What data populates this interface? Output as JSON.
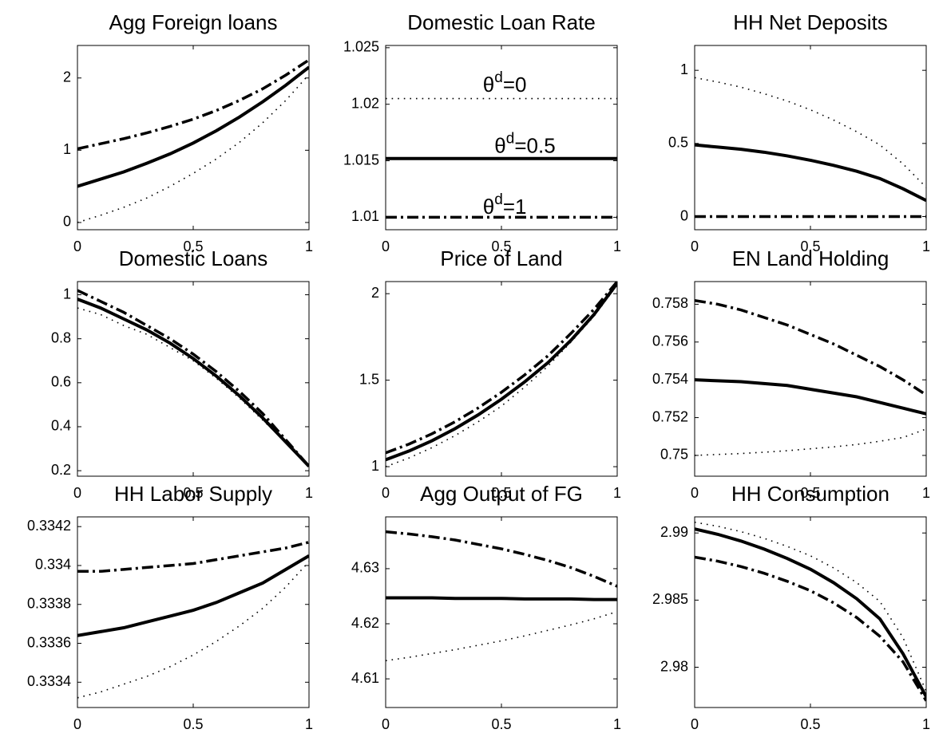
{
  "chart_data": [
    {
      "type": "line",
      "title": "Agg Foreign loans",
      "x": [
        0,
        0.1,
        0.2,
        0.3,
        0.4,
        0.5,
        0.6,
        0.7,
        0.8,
        0.9,
        1
      ],
      "xlim": [
        0,
        1
      ],
      "xticks": [
        0,
        0.5,
        1
      ],
      "ylim": [
        -0.1,
        2.45
      ],
      "yticks": [
        0,
        1,
        2
      ],
      "series": [
        {
          "color": "#000000",
          "style": "solid",
          "values": [
            0.5,
            0.6,
            0.7,
            0.82,
            0.95,
            1.1,
            1.27,
            1.46,
            1.67,
            1.9,
            2.15
          ]
        },
        {
          "color": "#000000",
          "style": "dashdot",
          "values": [
            1.02,
            1.09,
            1.16,
            1.24,
            1.33,
            1.43,
            1.55,
            1.69,
            1.85,
            2.04,
            2.25
          ]
        },
        {
          "color": "#000000",
          "style": "dotted",
          "values": [
            0,
            0.1,
            0.21,
            0.34,
            0.5,
            0.68,
            0.88,
            1.11,
            1.38,
            1.69,
            2.05
          ]
        }
      ]
    },
    {
      "type": "line",
      "title": "Domestic Loan Rate",
      "x": [
        0,
        0.1,
        0.2,
        0.3,
        0.4,
        0.5,
        0.6,
        0.7,
        0.8,
        0.9,
        1
      ],
      "xlim": [
        0,
        1
      ],
      "xticks": [
        0,
        0.5,
        1
      ],
      "ylim": [
        1.0089,
        1.0252
      ],
      "yticks": [
        1.01,
        1.015,
        1.02,
        1.025
      ],
      "series": [
        {
          "color": "#000000",
          "style": "solid",
          "values": [
            1.0152,
            1.0152,
            1.0152,
            1.0152,
            1.0152,
            1.0152,
            1.0152,
            1.0152,
            1.0152,
            1.0152,
            1.0152
          ]
        },
        {
          "color": "#000000",
          "style": "dashdot",
          "values": [
            1.01,
            1.01,
            1.01,
            1.01,
            1.01,
            1.01,
            1.01,
            1.01,
            1.01,
            1.01,
            1.01
          ]
        },
        {
          "color": "#000000",
          "style": "dotted",
          "values": [
            1.0205,
            1.0205,
            1.0205,
            1.0205,
            1.0205,
            1.0205,
            1.0205,
            1.0205,
            1.0205,
            1.0205,
            1.0205
          ]
        }
      ],
      "annotations": [
        {
          "text": "θ",
          "sup": "d",
          "rest": "=0",
          "x": 0.42,
          "y": 1.0216
        },
        {
          "text": "θ",
          "sup": "d",
          "rest": "=0.5",
          "x": 0.47,
          "y": 1.0162
        },
        {
          "text": "θ",
          "sup": "d",
          "rest": "=1",
          "x": 0.42,
          "y": 1.0108
        }
      ]
    },
    {
      "type": "line",
      "title": "HH Net Deposits",
      "x": [
        0,
        0.1,
        0.2,
        0.3,
        0.4,
        0.5,
        0.6,
        0.7,
        0.8,
        0.9,
        1
      ],
      "xlim": [
        0,
        1
      ],
      "xticks": [
        0,
        0.5,
        1
      ],
      "ylim": [
        -0.09,
        1.17
      ],
      "yticks": [
        0,
        0.5,
        1
      ],
      "series": [
        {
          "color": "#000000",
          "style": "solid",
          "values": [
            0.49,
            0.475,
            0.46,
            0.44,
            0.415,
            0.385,
            0.35,
            0.31,
            0.26,
            0.19,
            0.11
          ]
        },
        {
          "color": "#000000",
          "style": "dashdot",
          "values": [
            0,
            0,
            0,
            0,
            0,
            0,
            0,
            0,
            0,
            0,
            0
          ]
        },
        {
          "color": "#000000",
          "style": "dotted",
          "values": [
            0.95,
            0.92,
            0.885,
            0.84,
            0.79,
            0.73,
            0.66,
            0.58,
            0.49,
            0.36,
            0.2
          ]
        }
      ]
    },
    {
      "type": "line",
      "title": "Domestic Loans",
      "x": [
        0,
        0.1,
        0.2,
        0.3,
        0.4,
        0.5,
        0.6,
        0.7,
        0.8,
        0.9,
        1
      ],
      "xlim": [
        0,
        1
      ],
      "xticks": [
        0,
        0.5,
        1
      ],
      "ylim": [
        0.175,
        1.06
      ],
      "yticks": [
        0.2,
        0.4,
        0.6,
        0.8,
        1
      ],
      "series": [
        {
          "color": "#000000",
          "style": "solid",
          "values": [
            0.98,
            0.94,
            0.89,
            0.84,
            0.78,
            0.71,
            0.63,
            0.54,
            0.44,
            0.33,
            0.22
          ]
        },
        {
          "color": "#000000",
          "style": "dashdot",
          "values": [
            1.02,
            0.97,
            0.92,
            0.86,
            0.8,
            0.73,
            0.65,
            0.56,
            0.46,
            0.34,
            0.22
          ]
        },
        {
          "color": "#000000",
          "style": "dotted",
          "values": [
            0.94,
            0.91,
            0.86,
            0.82,
            0.76,
            0.7,
            0.62,
            0.53,
            0.43,
            0.33,
            0.22
          ]
        }
      ]
    },
    {
      "type": "line",
      "title": "Price of Land",
      "x": [
        0,
        0.1,
        0.2,
        0.3,
        0.4,
        0.5,
        0.6,
        0.7,
        0.8,
        0.9,
        1
      ],
      "xlim": [
        0,
        1
      ],
      "xticks": [
        0,
        0.5,
        1
      ],
      "ylim": [
        0.945,
        2.07
      ],
      "yticks": [
        1,
        1.5,
        2
      ],
      "series": [
        {
          "color": "#000000",
          "style": "solid",
          "values": [
            1.04,
            1.09,
            1.15,
            1.22,
            1.3,
            1.39,
            1.49,
            1.6,
            1.73,
            1.88,
            2.06
          ]
        },
        {
          "color": "#000000",
          "style": "dashdot",
          "values": [
            1.08,
            1.13,
            1.19,
            1.26,
            1.34,
            1.43,
            1.53,
            1.64,
            1.77,
            1.91,
            2.07
          ]
        },
        {
          "color": "#000000",
          "style": "dotted",
          "values": [
            1.0,
            1.05,
            1.11,
            1.18,
            1.26,
            1.35,
            1.46,
            1.58,
            1.72,
            1.87,
            2.05
          ]
        }
      ]
    },
    {
      "type": "line",
      "title": "EN Land Holding",
      "x": [
        0,
        0.1,
        0.2,
        0.3,
        0.4,
        0.5,
        0.6,
        0.7,
        0.8,
        0.9,
        1
      ],
      "xlim": [
        0,
        1
      ],
      "xticks": [
        0,
        0.5,
        1
      ],
      "ylim": [
        0.7489,
        0.7592
      ],
      "yticks": [
        0.75,
        0.752,
        0.754,
        0.756,
        0.758
      ],
      "series": [
        {
          "color": "#000000",
          "style": "solid",
          "values": [
            0.754,
            0.75395,
            0.7539,
            0.7538,
            0.7537,
            0.7535,
            0.7533,
            0.7531,
            0.7528,
            0.7525,
            0.7522
          ]
        },
        {
          "color": "#000000",
          "style": "dashdot",
          "values": [
            0.7582,
            0.758,
            0.7577,
            0.7573,
            0.7569,
            0.7564,
            0.7559,
            0.7553,
            0.7547,
            0.754,
            0.7532
          ]
        },
        {
          "color": "#000000",
          "style": "dotted",
          "values": [
            0.75,
            0.75005,
            0.7501,
            0.75017,
            0.75025,
            0.75035,
            0.75045,
            0.75058,
            0.75075,
            0.75095,
            0.7514
          ]
        }
      ]
    },
    {
      "type": "line",
      "title": "HH Labor Supply",
      "x": [
        0,
        0.1,
        0.2,
        0.3,
        0.4,
        0.5,
        0.6,
        0.7,
        0.8,
        0.9,
        1
      ],
      "xlim": [
        0,
        1
      ],
      "xticks": [
        0,
        0.5,
        1
      ],
      "ylim": [
        0.33327,
        0.33425
      ],
      "yticks": [
        0.3334,
        0.3336,
        0.3338,
        0.334,
        0.3342
      ],
      "series": [
        {
          "color": "#000000",
          "style": "solid",
          "values": [
            0.33364,
            0.33366,
            0.33368,
            0.33371,
            0.33374,
            0.33377,
            0.33381,
            0.33386,
            0.33391,
            0.33398,
            0.33405
          ]
        },
        {
          "color": "#000000",
          "style": "dashdot",
          "values": [
            0.33397,
            0.33397,
            0.33398,
            0.33399,
            0.334,
            0.33401,
            0.33403,
            0.33405,
            0.33407,
            0.33409,
            0.33412
          ]
        },
        {
          "color": "#000000",
          "style": "dotted",
          "values": [
            0.33332,
            0.33335,
            0.33339,
            0.33343,
            0.33348,
            0.33354,
            0.33361,
            0.33369,
            0.33378,
            0.33389,
            0.33402
          ]
        }
      ]
    },
    {
      "type": "line",
      "title": "Agg Output of FG",
      "x": [
        0,
        0.1,
        0.2,
        0.3,
        0.4,
        0.5,
        0.6,
        0.7,
        0.8,
        0.9,
        1
      ],
      "xlim": [
        0,
        1
      ],
      "xticks": [
        0,
        0.5,
        1
      ],
      "ylim": [
        4.6048,
        4.6394
      ],
      "yticks": [
        4.61,
        4.62,
        4.63
      ],
      "series": [
        {
          "color": "#000000",
          "style": "solid",
          "values": [
            4.6247,
            4.6247,
            4.6247,
            4.6246,
            4.6246,
            4.6246,
            4.6245,
            4.6245,
            4.6245,
            4.6244,
            4.6244
          ]
        },
        {
          "color": "#000000",
          "style": "dashdot",
          "values": [
            4.6367,
            4.6363,
            4.6358,
            4.6352,
            4.6344,
            4.6336,
            4.6326,
            4.6315,
            4.6302,
            4.6286,
            4.6268
          ]
        },
        {
          "color": "#000000",
          "style": "dotted",
          "values": [
            4.6133,
            4.6139,
            4.6146,
            4.6153,
            4.6161,
            4.6169,
            4.6178,
            4.6188,
            4.6198,
            4.6209,
            4.6222
          ]
        }
      ]
    },
    {
      "type": "line",
      "title": "HH Consumption",
      "x": [
        0,
        0.1,
        0.2,
        0.3,
        0.4,
        0.5,
        0.6,
        0.7,
        0.8,
        0.9,
        1
      ],
      "xlim": [
        0,
        1
      ],
      "xticks": [
        0,
        0.5,
        1
      ],
      "ylim": [
        2.977,
        2.9912
      ],
      "yticks": [
        2.98,
        2.985,
        2.99
      ],
      "series": [
        {
          "color": "#000000",
          "style": "solid",
          "values": [
            2.9903,
            2.9899,
            2.9894,
            2.9888,
            2.9881,
            2.9873,
            2.9863,
            2.9851,
            2.9836,
            2.981,
            2.9778
          ]
        },
        {
          "color": "#000000",
          "style": "dashdot",
          "values": [
            2.9882,
            2.9879,
            2.9875,
            2.987,
            2.9864,
            2.9857,
            2.9848,
            2.9837,
            2.9823,
            2.9804,
            2.9775
          ]
        },
        {
          "color": "#000000",
          "style": "dotted",
          "values": [
            2.9908,
            2.9905,
            2.9901,
            2.9896,
            2.989,
            2.9883,
            2.9874,
            2.9863,
            2.9849,
            2.9822,
            2.9782
          ]
        }
      ]
    }
  ]
}
